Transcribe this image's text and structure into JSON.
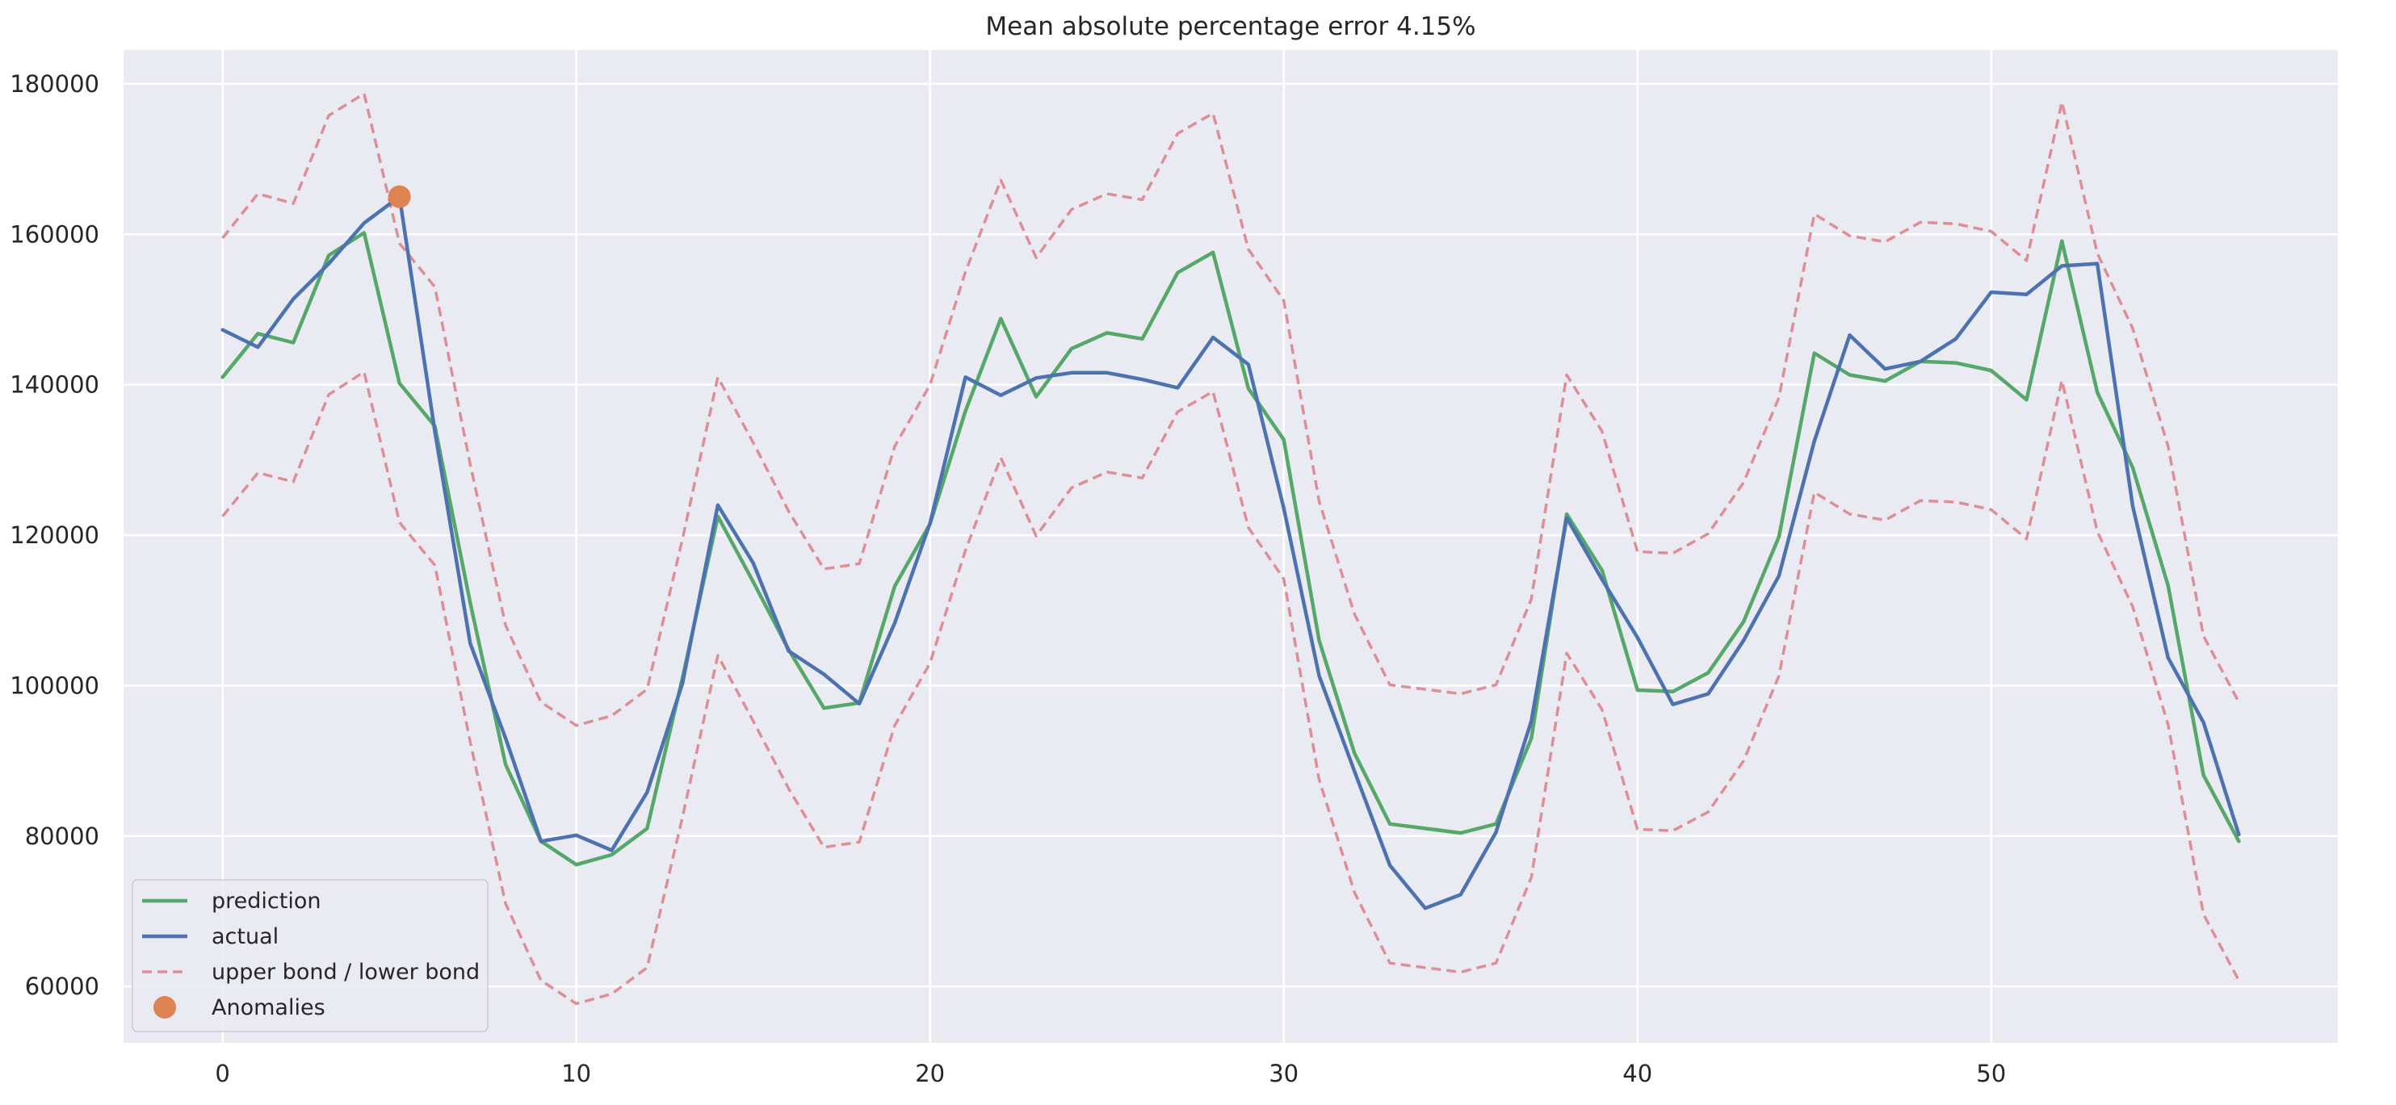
{
  "chart_data": {
    "type": "line",
    "title": "Mean absolute percentage error 4.15%",
    "xlabel": "",
    "ylabel": "",
    "xlim": [
      -2.8,
      59.8
    ],
    "ylim": [
      52500,
      184500
    ],
    "xticks": [
      0,
      10,
      20,
      30,
      40,
      50
    ],
    "yticks": [
      60000,
      80000,
      100000,
      120000,
      140000,
      160000,
      180000
    ],
    "grid": true,
    "legend_position": "lower-left",
    "x": [
      0,
      1,
      2,
      3,
      4,
      5,
      6,
      7,
      8,
      9,
      10,
      11,
      12,
      13,
      14,
      15,
      16,
      17,
      18,
      19,
      20,
      21,
      22,
      23,
      24,
      25,
      26,
      27,
      28,
      29,
      30,
      31,
      32,
      33,
      34,
      35,
      36,
      37,
      38,
      39,
      40,
      41,
      42,
      43,
      44,
      45,
      46,
      47,
      48,
      49,
      50,
      51,
      52,
      53,
      54,
      55,
      56,
      57
    ],
    "series": [
      {
        "name": "prediction",
        "style": "solid",
        "color": "#55a868",
        "values": [
          141000,
          146800,
          145600,
          157200,
          160200,
          140200,
          134500,
          111000,
          89500,
          79300,
          76200,
          77500,
          81000,
          101000,
          122500,
          113800,
          104800,
          97000,
          97700,
          113200,
          121500,
          136500,
          148800,
          138400,
          144800,
          146900,
          146100,
          154900,
          157600,
          139500,
          132700,
          106000,
          91000,
          81600,
          81000,
          80400,
          81600,
          93000,
          122800,
          115300,
          99400,
          99200,
          101700,
          108500,
          119800,
          144200,
          141300,
          140500,
          143100,
          142900,
          141900,
          138000,
          159100,
          139000,
          129000,
          113300,
          88100,
          79300
        ]
      },
      {
        "name": "actual",
        "style": "solid",
        "color": "#4c72b0",
        "values": [
          147300,
          145000,
          151400,
          156100,
          161500,
          165000,
          133800,
          105600,
          93000,
          79300,
          80100,
          78100,
          85800,
          100300,
          124000,
          116300,
          104600,
          101500,
          97600,
          108300,
          121600,
          141000,
          138600,
          140900,
          141600,
          141600,
          140700,
          139600,
          146300,
          142700,
          123600,
          101300,
          88600,
          76100,
          70400,
          72200,
          80500,
          95300,
          122300,
          114100,
          106400,
          97500,
          98900,
          106000,
          114600,
          132500,
          146600,
          142100,
          143100,
          146100,
          152300,
          152000,
          155800,
          156100,
          123900,
          103700,
          95100,
          80200
        ]
      },
      {
        "name": "upper bond / lower bond",
        "style": "dashed",
        "color": "#dd8f93",
        "values": [
          159500,
          165400,
          164100,
          175800,
          178700,
          158800,
          153000,
          129400,
          108000,
          97800,
          94700,
          96000,
          99500,
          119500,
          141000,
          132300,
          123200,
          115500,
          116200,
          131800,
          140000,
          155000,
          167200,
          156900,
          163300,
          165400,
          164600,
          173400,
          176100,
          158000,
          151200,
          124500,
          109500,
          100100,
          99500,
          98900,
          100100,
          111500,
          141300,
          133800,
          117800,
          117600,
          120200,
          127000,
          138300,
          162700,
          159800,
          159000,
          161600,
          161400,
          160400,
          156500,
          177600,
          157500,
          147500,
          131800,
          106600,
          97800
        ]
      },
      {
        "name": "lower bond",
        "style": "dashed",
        "color": "#dd8f93",
        "values": [
          122500,
          128300,
          127100,
          138700,
          141700,
          121700,
          116000,
          92500,
          71000,
          60800,
          57700,
          59000,
          62500,
          82500,
          104000,
          95300,
          86300,
          78500,
          79200,
          94700,
          103000,
          118000,
          130300,
          119900,
          126300,
          128400,
          127600,
          136400,
          139100,
          121000,
          114200,
          87500,
          72500,
          63100,
          62500,
          61900,
          63100,
          74500,
          104300,
          96800,
          80900,
          80700,
          83200,
          90000,
          101300,
          125700,
          122800,
          122000,
          124600,
          124400,
          123400,
          119500,
          140600,
          120500,
          110500,
          94800,
          69600,
          60800
        ]
      }
    ],
    "anomalies": {
      "name": "Anomalies",
      "color": "#dd8452",
      "points": [
        {
          "x": 5,
          "y": 165000
        }
      ]
    }
  }
}
